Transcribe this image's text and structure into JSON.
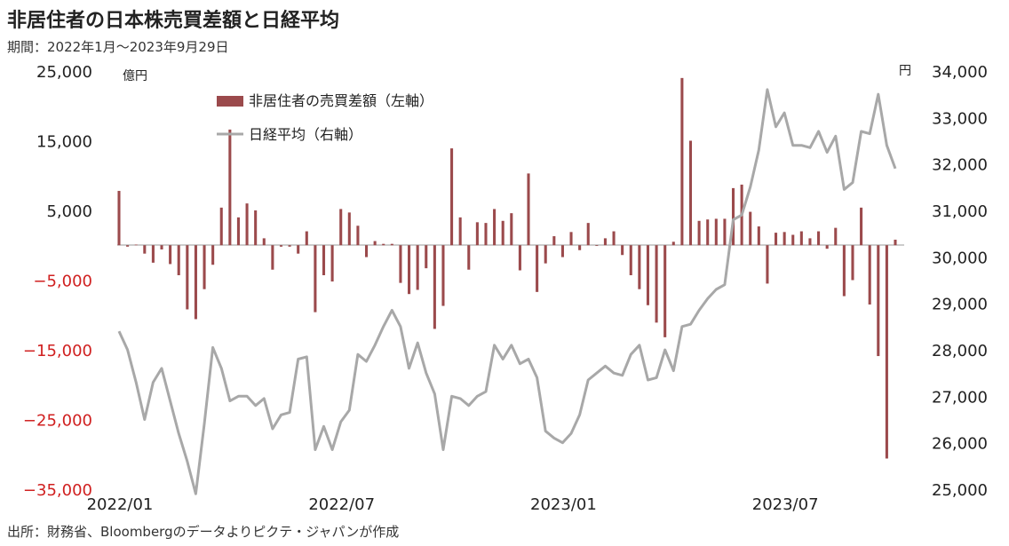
{
  "title": "非居住者の日本株売買差額と日経平均",
  "subtitle": "期間：2022年1月～2023年9月29日",
  "source": "出所：財務省、Bloombergのデータよりピクテ・ジャパンが作成",
  "colors": {
    "bar": "#9b4a4c",
    "line": "#a8a8a8",
    "negative_tick": "#d02020",
    "positive_tick": "#222222"
  },
  "chart_data": {
    "type": "bar+line",
    "x_start": "2022/01",
    "x_labels": [
      "2022/01",
      "2022/07",
      "2023/01",
      "2023/07"
    ],
    "y_left": {
      "unit": "億円",
      "range": [
        -35000,
        25000
      ],
      "ticks": [
        25000,
        15000,
        5000,
        -5000,
        -15000,
        -25000,
        -35000
      ],
      "tick_labels": [
        "25,000",
        "15,000",
        "5,000",
        "−5,000",
        "−15,000",
        "−25,000",
        "−35,000"
      ]
    },
    "y_right": {
      "unit": "円",
      "range": [
        25000,
        34000
      ],
      "ticks": [
        34000,
        33000,
        32000,
        31000,
        30000,
        29000,
        28000,
        27000,
        26000,
        25000
      ],
      "tick_labels": [
        "34,000",
        "33,000",
        "32,000",
        "31,000",
        "30,000",
        "29,000",
        "28,000",
        "27,000",
        "26,000",
        "25,000"
      ]
    },
    "series": [
      {
        "name": "非居住者の売買差額（左軸）",
        "type": "bar",
        "values": [
          7800,
          -200,
          100,
          -1200,
          -2500,
          -600,
          -2700,
          -4300,
          -9200,
          -10600,
          -6300,
          -2800,
          5400,
          16600,
          4000,
          6000,
          5000,
          1000,
          -3500,
          -200,
          -200,
          -1200,
          2000,
          -9600,
          -4300,
          -5200,
          5200,
          4700,
          2800,
          -1700,
          600,
          200,
          200,
          -5400,
          -7000,
          -6400,
          -3300,
          -12000,
          -8700,
          13900,
          4000,
          -3500,
          3300,
          3200,
          5200,
          3500,
          4600,
          -3600,
          10300,
          -6700,
          -2600,
          1300,
          -1700,
          1900,
          -700,
          3200,
          -100,
          1000,
          2000,
          -1400,
          -4300,
          -6300,
          -8600,
          -11100,
          -13200,
          500,
          24000,
          15000,
          3500,
          3700,
          3800,
          3800,
          8200,
          8700,
          4800,
          2700,
          -5500,
          1800,
          1900,
          1500,
          2000,
          1000,
          2000,
          -500,
          2500,
          -7300,
          -5000,
          5400,
          -8500,
          -15900,
          -30600,
          800
        ]
      },
      {
        "name": "日経平均（右軸）",
        "type": "line",
        "values": [
          28400,
          28000,
          27300,
          26500,
          27300,
          27600,
          26900,
          26200,
          25600,
          24900,
          26400,
          28050,
          27600,
          26900,
          27000,
          27000,
          26800,
          26950,
          26300,
          26600,
          26650,
          27800,
          27850,
          25850,
          26350,
          25850,
          26450,
          26700,
          27900,
          27750,
          28100,
          28500,
          28850,
          28500,
          27600,
          28150,
          27500,
          27050,
          25850,
          27000,
          26950,
          26800,
          27000,
          27100,
          28100,
          27800,
          28100,
          27700,
          27800,
          27400,
          26250,
          26100,
          26000,
          26200,
          26600,
          27350,
          27500,
          27650,
          27500,
          27450,
          27900,
          28100,
          27350,
          27400,
          28000,
          27550,
          28500,
          28550,
          28850,
          29100,
          29300,
          29400,
          30800,
          30900,
          31500,
          32300,
          33600,
          32800,
          33100,
          32400,
          32400,
          32350,
          32700,
          32250,
          32600,
          31450,
          31600,
          32700,
          32650,
          33500,
          32400,
          31900
        ]
      }
    ]
  }
}
